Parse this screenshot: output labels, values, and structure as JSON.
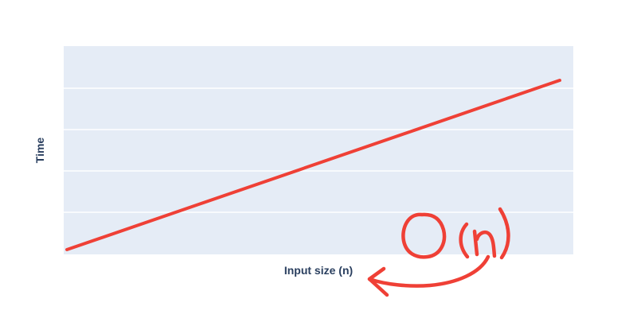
{
  "chart_data": {
    "type": "line",
    "title": "",
    "xlabel": "Input size (n)",
    "ylabel": "Time",
    "x_ticks_shown": false,
    "y_ticks_shown": false,
    "grid": {
      "x": false,
      "y": true
    },
    "plot_background": "#e5ecf6",
    "x": [
      0,
      1
    ],
    "series": [
      {
        "values": [
          0,
          1
        ],
        "color": "#ef4036"
      }
    ],
    "annotation": {
      "text": "O(n)",
      "style": "handwritten",
      "color": "#ef4036",
      "arrow_points_to": "xlabel"
    }
  }
}
